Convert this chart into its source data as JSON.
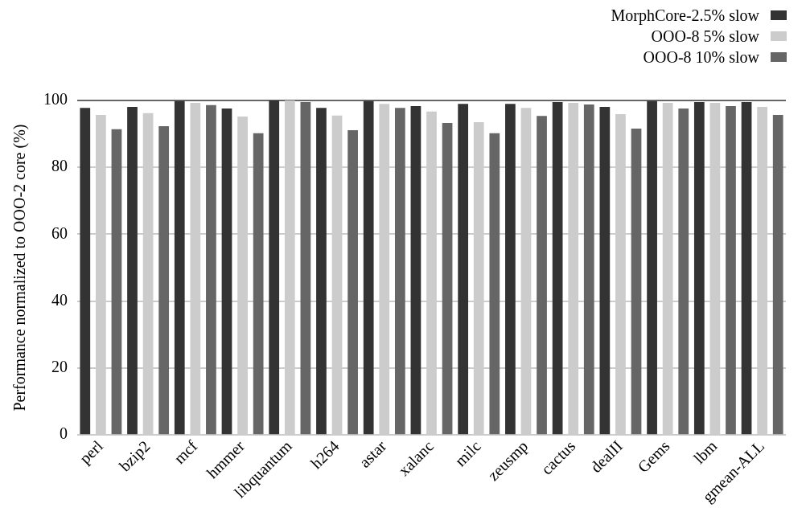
{
  "chart_data": {
    "type": "bar",
    "ylabel": "Performance normalized to OOO-2 core (%)",
    "categories": [
      "perl",
      "bzip2",
      "mcf",
      "hmmer",
      "libquantum",
      "h264",
      "astar",
      "xalanc",
      "milc",
      "zeusmp",
      "cactus",
      "dealII",
      "Gems",
      "lbm",
      "gmean-ALL"
    ],
    "series": [
      {
        "name": "MorphCore-2.5% slow",
        "color": "#333333",
        "values": [
          97.8,
          98.1,
          99.8,
          97.6,
          100,
          97.8,
          99.8,
          98.3,
          99.0,
          99.0,
          99.5,
          98.1,
          99.8,
          99.5,
          99.5
        ]
      },
      {
        "name": "OOO-8 5% slow",
        "color": "#cccccc",
        "values": [
          95.7,
          96.2,
          99.3,
          95.2,
          100,
          95.5,
          99.0,
          96.7,
          93.5,
          97.8,
          99.3,
          95.9,
          99.3,
          99.3,
          98.1
        ]
      },
      {
        "name": "OOO-8 10% slow",
        "color": "#666666",
        "values": [
          91.4,
          92.3,
          98.6,
          90.2,
          99.5,
          91.1,
          97.8,
          93.3,
          90.2,
          95.4,
          98.8,
          91.6,
          97.6,
          98.3,
          95.7
        ]
      }
    ],
    "ylim": [
      0,
      100
    ],
    "yticks": [
      0,
      20,
      40,
      60,
      80,
      100
    ],
    "grid": "y",
    "legend": "top right"
  }
}
